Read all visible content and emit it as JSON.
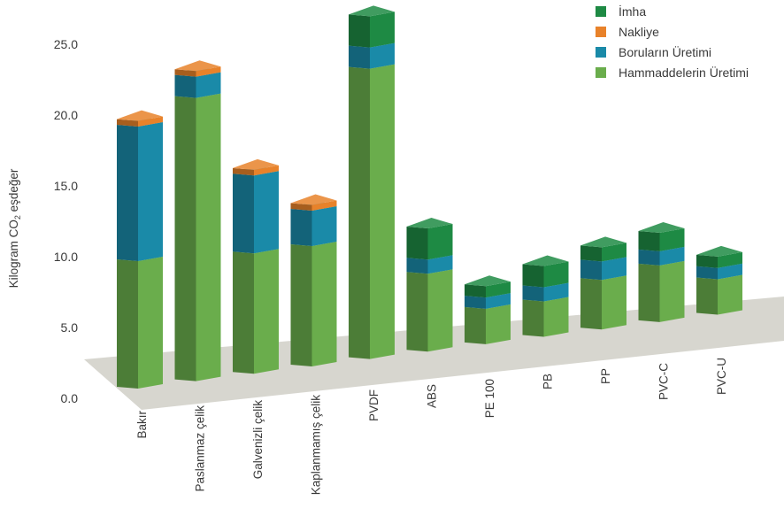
{
  "chart_data": {
    "type": "bar",
    "stacked": true,
    "three_d": true,
    "ylabel_parts": [
      "Kilogram CO",
      "2",
      " eşdeğer"
    ],
    "ylim": [
      0,
      25
    ],
    "yticks": [
      "0.0",
      "5.0",
      "10.0",
      "15.0",
      "20.0",
      "25.0"
    ],
    "legend_position": "top-right",
    "categories": [
      "Bakır",
      "Paslanmaz çelik",
      "Galvenizli çelik",
      "Kaplanmamış çelik",
      "PVDF",
      "ABS",
      "PE 100",
      "PB",
      "PP",
      "PVC-C",
      "PVC-U"
    ],
    "series": [
      {
        "name": "Hammaddelerin Üretimi",
        "color": "#6aad4c",
        "values": [
          9.0,
          20.0,
          8.5,
          8.5,
          20.5,
          5.5,
          2.5,
          2.5,
          3.5,
          4.0,
          2.5
        ]
      },
      {
        "name": "Boruların Üretimi",
        "color": "#1a8aa8",
        "values": [
          9.5,
          1.5,
          5.5,
          2.5,
          1.5,
          1.0,
          0.8,
          1.0,
          1.3,
          1.0,
          0.8
        ]
      },
      {
        "name": "Nakliye",
        "color": "#e8822a",
        "values": [
          0.4,
          0.4,
          0.4,
          0.4,
          0.0,
          0.0,
          0.0,
          0.0,
          0.0,
          0.0,
          0.0
        ]
      },
      {
        "name": "İmha",
        "color": "#1e8a44",
        "values": [
          0.0,
          0.0,
          0.0,
          0.0,
          2.2,
          2.2,
          0.8,
          1.5,
          1.0,
          1.3,
          0.8
        ]
      }
    ],
    "legend_order": [
      "İmha",
      "Nakliye",
      "Boruların Üretimi",
      "Hammaddelerin Üretimi"
    ]
  }
}
